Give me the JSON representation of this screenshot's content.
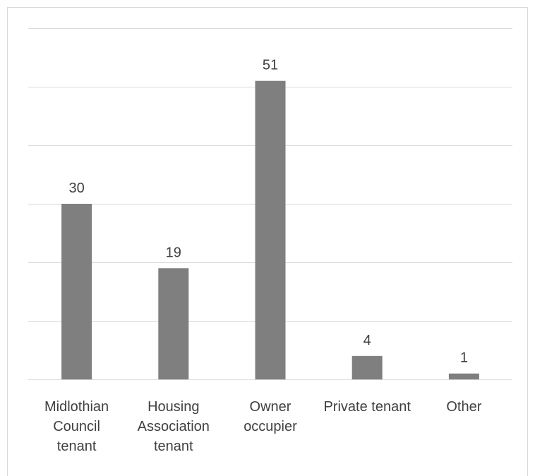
{
  "chart_data": {
    "type": "bar",
    "categories": [
      "Midlothian Council tenant",
      "Housing Association tenant",
      "Owner occupier",
      "Private tenant",
      "Other"
    ],
    "values": [
      30,
      19,
      51,
      4,
      1
    ],
    "color": "#7f7f7f",
    "ylim": [
      0,
      60
    ],
    "yticks": [
      0,
      10,
      20,
      30,
      40,
      50,
      60
    ],
    "grid": true
  }
}
